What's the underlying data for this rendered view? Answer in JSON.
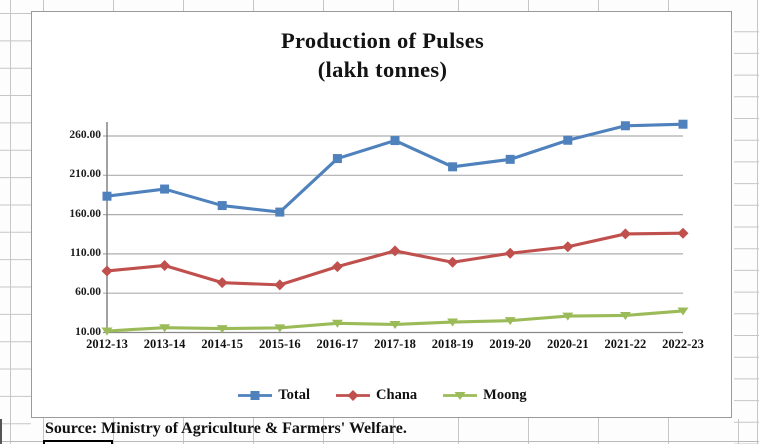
{
  "header": {
    "title_line1": "Production of Pulses",
    "title_line2": "(lakh tonnes)"
  },
  "source_note": "Source: Ministry of Agriculture & Farmers' Welfare.",
  "legend": [
    "Total",
    "Chana",
    "Moong"
  ],
  "colors": {
    "total": "#4F81BD",
    "chana": "#C0504D",
    "moong": "#9BBB59"
  },
  "chart_data": {
    "type": "line",
    "title": "Production of Pulses (lakh tonnes)",
    "categories": [
      "2012-13",
      "2013-14",
      "2014-15",
      "2015-16",
      "2016-17",
      "2017-18",
      "2018-19",
      "2019-20",
      "2020-21",
      "2021-22",
      "2022-23"
    ],
    "series": [
      {
        "name": "Total",
        "color": "#4F81BD",
        "marker": "square",
        "values": [
          183.4,
          192.5,
          171.5,
          163.2,
          231.3,
          254.2,
          220.8,
          230.3,
          254.6,
          273.0,
          275.0
        ]
      },
      {
        "name": "Chana",
        "color": "#C0504D",
        "marker": "diamond",
        "values": [
          88.3,
          95.3,
          73.4,
          70.6,
          93.8,
          113.8,
          99.4,
          110.8,
          119.1,
          135.4,
          136.3
        ]
      },
      {
        "name": "Moong",
        "color": "#9BBB59",
        "marker": "triangle-down",
        "values": [
          11.9,
          16.1,
          15.0,
          15.9,
          21.7,
          20.2,
          23.3,
          25.1,
          30.9,
          31.7,
          37.4
        ]
      }
    ],
    "y_ticks": [
      "10.00",
      "60.00",
      "110.00",
      "160.00",
      "210.00",
      "260.00"
    ],
    "y_tick_values": [
      10,
      60,
      110,
      160,
      210,
      260
    ],
    "ylim": [
      10,
      278
    ],
    "xlabel": "",
    "ylabel": "",
    "grid": true,
    "legend_position": "bottom"
  }
}
